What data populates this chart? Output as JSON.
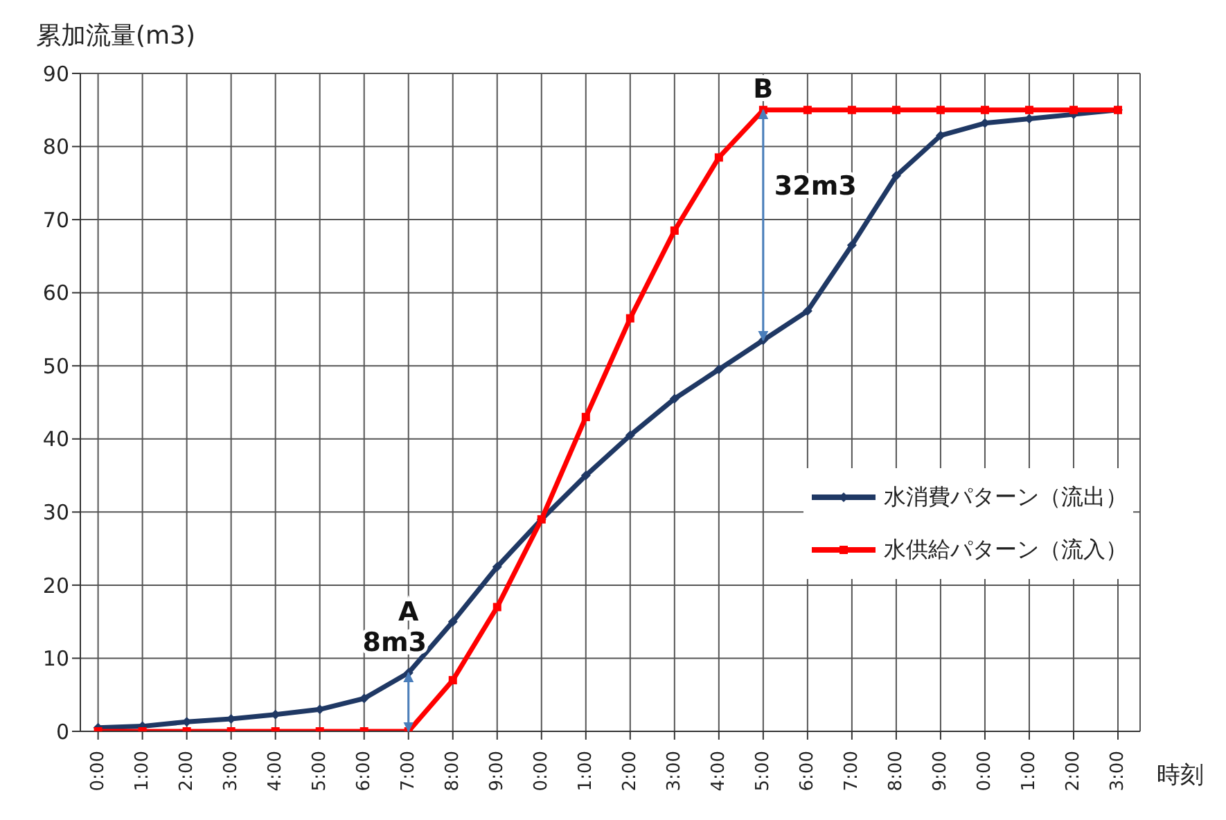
{
  "chart_data": {
    "type": "line",
    "ylabel": "累加流量(m3)",
    "xlabel": "時刻",
    "categories": [
      "0:00",
      "1:00",
      "2:00",
      "3:00",
      "4:00",
      "5:00",
      "6:00",
      "7:00",
      "8:00",
      "9:00",
      "0:00",
      "1:00",
      "2:00",
      "3:00",
      "4:00",
      "5:00",
      "6:00",
      "7:00",
      "8:00",
      "9:00",
      "0:00",
      "1:00",
      "2:00",
      "3:00"
    ],
    "series": [
      {
        "name": "水消費パターン（流出）",
        "color": "#1f3864",
        "marker": "diamond",
        "values": [
          0.5,
          0.7,
          1.3,
          1.7,
          2.3,
          3,
          4.5,
          8,
          15,
          22.5,
          29,
          35,
          40.5,
          45.5,
          49.5,
          53.5,
          57.5,
          66.5,
          76,
          81.5,
          83.2,
          83.8,
          84.4,
          85
        ]
      },
      {
        "name": "水供給パターン（流入）",
        "color": "#ff0000",
        "marker": "square",
        "values": [
          0,
          0,
          0,
          0,
          0,
          0,
          0,
          0,
          7,
          17,
          29,
          43,
          56.5,
          68.5,
          78.5,
          85,
          85,
          85,
          85,
          85,
          85,
          85,
          85,
          85
        ]
      }
    ],
    "ylim": [
      0,
      90
    ],
    "yticks": [
      0,
      10,
      20,
      30,
      40,
      50,
      60,
      70,
      80,
      90
    ],
    "grid": true,
    "legend": "right",
    "line_style": "solid",
    "annotations": [
      {
        "text": "A",
        "x": "7:00",
        "y": 8
      },
      {
        "text": "8m3",
        "x": "7:00",
        "y": 8
      },
      {
        "text": "B",
        "y": 85
      },
      "32m3"
    ]
  }
}
